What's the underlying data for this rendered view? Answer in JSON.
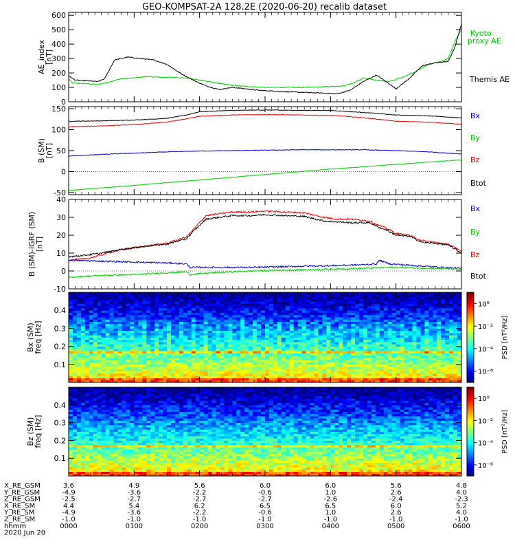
{
  "title": "GEO-KOMPSAT-2A 128.2E (2020-06-20) recalib dataset",
  "colors": {
    "black": "#000000",
    "red": "#e00000",
    "blue": "#0000cc",
    "green": "#00cc00"
  },
  "x_ticks": [
    "0000",
    "0100",
    "0200",
    "0300",
    "0400",
    "0500",
    "0600"
  ],
  "chart_data": [
    {
      "id": "ae",
      "type": "line",
      "ylabel": "AE_index\n[nT]",
      "ylim": [
        0,
        620
      ],
      "yticks": [
        "0",
        "100",
        "200",
        "300",
        "400",
        "500",
        "600"
      ],
      "ytick_values": [
        0,
        100,
        200,
        300,
        400,
        500,
        600
      ],
      "xlim": [
        0,
        6
      ],
      "legend": [
        {
          "label": "Kyoto\nproxy AE",
          "color": "#00cc00"
        },
        {
          "label": "Themis AE",
          "color": "#000000"
        }
      ],
      "series": [
        {
          "name": "Kyoto proxy AE",
          "color": "#00cc00",
          "x": [
            0,
            0.05,
            0.3,
            0.45,
            0.6,
            0.8,
            1.0,
            1.2,
            1.4,
            1.6,
            1.8,
            2.0,
            2.2,
            2.4,
            2.6,
            2.8,
            3.0,
            3.3,
            3.6,
            3.9,
            4.2,
            4.35,
            4.5,
            4.7,
            4.9,
            5.1,
            5.3,
            5.5,
            5.7,
            5.8,
            5.9,
            6.0
          ],
          "y": [
            160,
            130,
            125,
            120,
            135,
            160,
            165,
            175,
            170,
            170,
            165,
            150,
            135,
            120,
            110,
            105,
            100,
            100,
            100,
            105,
            110,
            130,
            165,
            150,
            140,
            170,
            210,
            260,
            280,
            300,
            420,
            500
          ]
        },
        {
          "name": "Themis AE",
          "color": "#000000",
          "x": [
            0,
            0.1,
            0.3,
            0.45,
            0.55,
            0.7,
            0.9,
            1.1,
            1.3,
            1.5,
            1.7,
            1.9,
            2.1,
            2.3,
            2.5,
            2.7,
            2.9,
            3.1,
            3.3,
            3.6,
            3.9,
            4.1,
            4.3,
            4.5,
            4.7,
            4.85,
            5.0,
            5.2,
            5.4,
            5.6,
            5.8,
            5.9,
            6.0
          ],
          "y": [
            180,
            150,
            145,
            140,
            160,
            290,
            310,
            300,
            290,
            260,
            200,
            150,
            110,
            85,
            100,
            90,
            80,
            75,
            70,
            65,
            60,
            55,
            80,
            140,
            185,
            140,
            90,
            160,
            250,
            270,
            280,
            380,
            540
          ]
        }
      ]
    },
    {
      "id": "bsm",
      "type": "line",
      "ylabel": "B (SM)\n[nT]",
      "ylim": [
        -55,
        155
      ],
      "yticks": [
        "-50",
        "0",
        "50",
        "100",
        "150"
      ],
      "ytick_values": [
        -50,
        0,
        50,
        100,
        150
      ],
      "xlim": [
        0,
        6
      ],
      "legend": [
        {
          "label": "Bx",
          "color": "#0000cc"
        },
        {
          "label": "By",
          "color": "#00cc00"
        },
        {
          "label": "Bz",
          "color": "#e00000"
        },
        {
          "label": "Btot",
          "color": "#000000"
        }
      ],
      "series": [
        {
          "name": "Btot",
          "color": "#000000",
          "x": [
            0,
            0.5,
            1.0,
            1.5,
            1.8,
            2.0,
            2.5,
            3.0,
            3.5,
            4.0,
            4.3,
            4.6,
            5.0,
            5.5,
            6.0
          ],
          "y": [
            120,
            121,
            123,
            127,
            135,
            143,
            146,
            147,
            146,
            146,
            143,
            140,
            135,
            133,
            128
          ]
        },
        {
          "name": "Bz",
          "color": "#e00000",
          "x": [
            0,
            0.5,
            1.0,
            1.5,
            1.8,
            2.0,
            2.5,
            3.0,
            3.5,
            4.0,
            4.3,
            4.6,
            5.0,
            5.5,
            6.0
          ],
          "y": [
            107,
            109,
            112,
            118,
            126,
            132,
            135,
            136,
            135,
            134,
            131,
            127,
            120,
            118,
            113
          ]
        },
        {
          "name": "Bx",
          "color": "#0000cc",
          "x": [
            0,
            0.5,
            1.0,
            1.5,
            2.0,
            2.5,
            3.0,
            3.5,
            4.0,
            4.5,
            5.0,
            5.5,
            6.0
          ],
          "y": [
            37,
            41,
            44,
            47,
            49,
            50,
            51,
            52,
            52,
            52,
            50,
            47,
            42
          ]
        },
        {
          "name": "By",
          "color": "#00cc00",
          "x": [
            0,
            1.0,
            2.0,
            3.0,
            4.0,
            5.0,
            6.0
          ],
          "y": [
            -45,
            -33,
            -20,
            -7,
            6,
            17,
            28
          ]
        }
      ]
    },
    {
      "id": "bdiff",
      "type": "line",
      "ylabel": "B (SM)-IGRF (SM)\n[nT]",
      "ylim": [
        -10,
        40
      ],
      "yticks": [
        "-10",
        "0",
        "10",
        "20",
        "30",
        "40"
      ],
      "ytick_values": [
        -10,
        0,
        10,
        20,
        30,
        40
      ],
      "xlim": [
        0,
        6
      ],
      "legend": [
        {
          "label": "Bx",
          "color": "#0000cc"
        },
        {
          "label": "By",
          "color": "#00cc00"
        },
        {
          "label": "Bz",
          "color": "#e00000"
        },
        {
          "label": "Btot",
          "color": "#000000"
        }
      ],
      "series": [
        {
          "name": "Bz",
          "color": "#e00000",
          "x": [
            0,
            0.3,
            0.5,
            0.8,
            1.0,
            1.2,
            1.5,
            1.8,
            1.9,
            2.1,
            2.3,
            2.5,
            2.8,
            3.0,
            3.3,
            3.6,
            3.9,
            4.1,
            4.3,
            4.6,
            4.7,
            4.85,
            5.0,
            5.2,
            5.4,
            5.6,
            5.8,
            6.0
          ],
          "y": [
            6,
            7,
            9,
            12,
            13,
            14,
            15.5,
            19,
            23,
            31,
            32,
            33,
            33,
            33.5,
            33,
            32.5,
            30,
            29,
            29,
            28,
            26,
            24,
            21,
            20,
            17,
            16,
            15,
            11
          ]
        },
        {
          "name": "Btot",
          "color": "#000000",
          "x": [
            0,
            0.3,
            0.5,
            0.8,
            1.0,
            1.2,
            1.5,
            1.8,
            1.9,
            2.1,
            2.3,
            2.5,
            2.8,
            3.0,
            3.3,
            3.6,
            3.9,
            4.1,
            4.3,
            4.6,
            4.7,
            4.85,
            5.0,
            5.2,
            5.4,
            5.6,
            5.8,
            6.0
          ],
          "y": [
            8,
            9,
            10,
            12,
            13,
            14,
            15,
            18,
            22,
            29,
            30,
            31,
            31,
            31.5,
            31,
            30.5,
            28,
            27.5,
            27,
            27,
            25,
            23,
            20,
            19.5,
            16,
            15.5,
            14.5,
            10
          ]
        },
        {
          "name": "Bx",
          "color": "#0000cc",
          "x": [
            0,
            0.5,
            1.0,
            1.5,
            1.8,
            1.85,
            2.2,
            2.8,
            3.4,
            4.0,
            4.5,
            4.7,
            4.75,
            4.9,
            5.3,
            5.7,
            6.0
          ],
          "y": [
            6,
            5.5,
            5,
            4.5,
            4,
            2,
            2,
            2,
            2.5,
            3,
            3.5,
            4,
            6,
            4,
            3,
            2,
            1.5
          ]
        },
        {
          "name": "By",
          "color": "#00cc00",
          "x": [
            0,
            0.5,
            1.0,
            1.5,
            1.8,
            1.85,
            2.2,
            2.8,
            3.4,
            4.0,
            4.5,
            5.0,
            5.5,
            6.0
          ],
          "y": [
            -3.5,
            -2.5,
            -2,
            -1,
            -0.5,
            -2,
            -1,
            0,
            0.5,
            1,
            1.5,
            2,
            1.5,
            1
          ]
        }
      ]
    },
    {
      "id": "spec_bx",
      "type": "heatmap",
      "ylabel": "Bx (SM)\nfreq [Hz]",
      "ylim": [
        0,
        0.5
      ],
      "yticks": [
        "0.1",
        "0.2",
        "0.3",
        "0.4"
      ],
      "ytick_values": [
        0.1,
        0.2,
        0.3,
        0.4
      ],
      "colorbar_label": "PSD [nT²/Hz]",
      "colorbar_ticks": [
        "10⁰",
        "10⁻²",
        "10⁻⁴",
        "10⁻⁶"
      ],
      "colorbar_exponents": [
        0,
        -2,
        -4,
        -6
      ],
      "clim_exp": [
        -7,
        1
      ],
      "line_freq_hz": 0.165
    },
    {
      "id": "spec_bz",
      "type": "heatmap",
      "ylabel": "Bz (SM)\nfreq [Hz]",
      "ylim": [
        0,
        0.5
      ],
      "yticks": [
        "0.1",
        "0.2",
        "0.3",
        "0.4"
      ],
      "ytick_values": [
        0.1,
        0.2,
        0.3,
        0.4
      ],
      "colorbar_label": "PSD [nT²/Hz]",
      "colorbar_ticks": [
        "10⁰",
        "10⁻²",
        "10⁻⁴",
        "10⁻⁶"
      ],
      "colorbar_exponents": [
        0,
        -2,
        -4,
        -6
      ],
      "clim_exp": [
        -7,
        1
      ],
      "line_freq_hz": 0.165
    }
  ],
  "ephemeris": {
    "rows": [
      {
        "label": "X_RE_GSM",
        "values": [
          "3.6",
          "4.9",
          "5.6",
          "6.0",
          "6.0",
          "5.6",
          "4.8"
        ]
      },
      {
        "label": "Y_RE_GSM",
        "values": [
          "-4.9",
          "-3.6",
          "-2.2",
          "-0.6",
          "1.0",
          "2.6",
          "4.0"
        ]
      },
      {
        "label": "Z_RE_GSM",
        "values": [
          "-2.5",
          "-2.7",
          "-2.7",
          "-2.7",
          "-2.6",
          "-2.4",
          "-2.3"
        ]
      },
      {
        "label": "X_RE_SM",
        "values": [
          "4.4",
          "5.4",
          "6.2",
          "6.5",
          "6.5",
          "6.0",
          "5.2"
        ]
      },
      {
        "label": "Y_RE_SM",
        "values": [
          "-4.9",
          "-3.6",
          "-2.2",
          "-0.6",
          "1.0",
          "2.6",
          "4.0"
        ]
      },
      {
        "label": "Z_RE_SM",
        "values": [
          "-1.0",
          "-1.0",
          "-1.0",
          "-1.0",
          "-1.0",
          "-1.0",
          "-1.0"
        ]
      },
      {
        "label": "hhmm",
        "values": [
          "0000",
          "0100",
          "0200",
          "0300",
          "0400",
          "0500",
          "0600"
        ]
      }
    ],
    "date_label": "2020 Jun 20"
  }
}
